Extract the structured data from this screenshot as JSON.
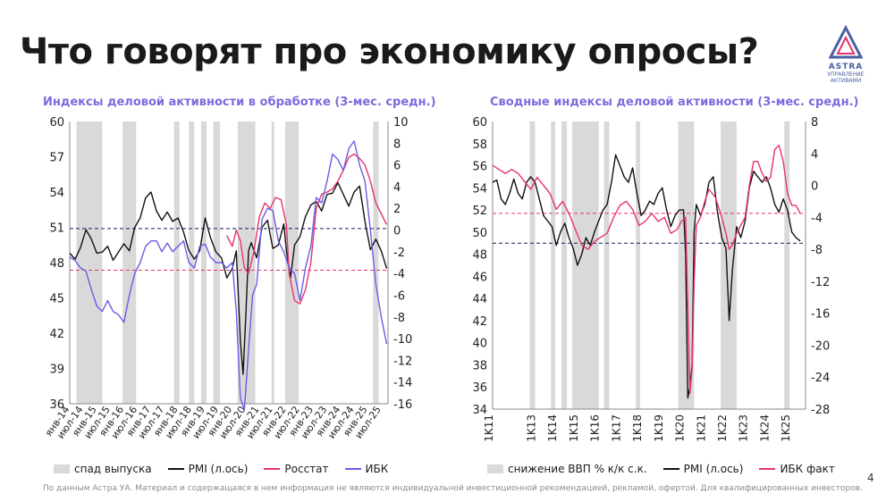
{
  "page": {
    "title": "Что говорят про экономику опросы?",
    "footnote": "По данным Астра УА. Материал и содержащаяся в нем информация не являются индивидуальной инвестиционной рекомендацией, рекламой, офертой. Для квалифицированных инвесторов.",
    "page_number": "4",
    "logo": {
      "brand": "ASTRA",
      "subtitle_1": "УПРАВЛЕНИЕ",
      "subtitle_2": "АКТИВАМИ"
    }
  },
  "colors": {
    "title": "#1a1a1a",
    "chart_title": "#7b6bde",
    "recession": "#d9d9d9",
    "pmi": "#111111",
    "rosstat": "#e8336b",
    "ibk": "#6b5ce7"
  },
  "chart_data": [
    {
      "type": "line",
      "title": "Индексы деловой активности в обработке (3-мес. средн.)",
      "y_left": {
        "lim": [
          36,
          60
        ],
        "ticks": [
          "36",
          "39",
          "42",
          "45",
          "48",
          "51",
          "54",
          "57",
          "60"
        ]
      },
      "y_right": {
        "lim": [
          -16,
          10
        ],
        "ticks": [
          "-16",
          "-14",
          "-12",
          "-10",
          "-8",
          "-6",
          "-4",
          "-2",
          "0",
          "2",
          "4",
          "6",
          "8",
          "10"
        ]
      },
      "x_range": [
        2014.0,
        2025.75
      ],
      "x_ticks": [
        {
          "x": 2014.0,
          "label": "янв-14"
        },
        {
          "x": 2014.5,
          "label": "июл-14"
        },
        {
          "x": 2015.0,
          "label": "янв-15"
        },
        {
          "x": 2015.5,
          "label": "июл-15"
        },
        {
          "x": 2016.0,
          "label": "янв-16"
        },
        {
          "x": 2016.5,
          "label": "июл-16"
        },
        {
          "x": 2017.0,
          "label": "янв-17"
        },
        {
          "x": 2017.5,
          "label": "июл-17"
        },
        {
          "x": 2018.0,
          "label": "янв-18"
        },
        {
          "x": 2018.5,
          "label": "июл-18"
        },
        {
          "x": 2019.0,
          "label": "янв-19"
        },
        {
          "x": 2019.5,
          "label": "июл-19"
        },
        {
          "x": 2020.0,
          "label": "янв-20"
        },
        {
          "x": 2020.5,
          "label": "июл-20"
        },
        {
          "x": 2021.0,
          "label": "янв-21"
        },
        {
          "x": 2021.5,
          "label": "июл-21"
        },
        {
          "x": 2022.0,
          "label": "янв-22"
        },
        {
          "x": 2022.5,
          "label": "июл-22"
        },
        {
          "x": 2023.0,
          "label": "янв-23"
        },
        {
          "x": 2023.5,
          "label": "июл-23"
        },
        {
          "x": 2024.0,
          "label": "янв-24"
        },
        {
          "x": 2024.5,
          "label": "июл-24"
        },
        {
          "x": 2025.0,
          "label": "янв-25"
        },
        {
          "x": 2025.5,
          "label": "июл-25"
        }
      ],
      "recessions": [
        [
          2014.25,
          2015.2
        ],
        [
          2015.95,
          2016.45
        ],
        [
          2017.85,
          2018.05
        ],
        [
          2018.4,
          2018.6
        ],
        [
          2018.85,
          2019.05
        ],
        [
          2019.3,
          2019.55
        ],
        [
          2020.2,
          2020.85
        ],
        [
          2021.45,
          2021.55
        ],
        [
          2021.95,
          2022.45
        ],
        [
          2025.2,
          2025.4
        ]
      ],
      "ref_left": 50.9,
      "ref_right": -3.7,
      "series": [
        {
          "name": "PMI (л.ось)",
          "axis": "left",
          "color": "#111111",
          "x": [
            2014.0,
            2014.2,
            2014.4,
            2014.6,
            2014.8,
            2015.0,
            2015.2,
            2015.4,
            2015.6,
            2015.8,
            2016.0,
            2016.2,
            2016.4,
            2016.6,
            2016.8,
            2017.0,
            2017.2,
            2017.4,
            2017.6,
            2017.8,
            2018.0,
            2018.2,
            2018.4,
            2018.6,
            2018.8,
            2019.0,
            2019.2,
            2019.4,
            2019.6,
            2019.8,
            2020.0,
            2020.15,
            2020.3,
            2020.4,
            2020.5,
            2020.6,
            2020.7,
            2020.9,
            2021.1,
            2021.3,
            2021.5,
            2021.7,
            2021.9,
            2022.0,
            2022.15,
            2022.3,
            2022.5,
            2022.7,
            2022.9,
            2023.1,
            2023.3,
            2023.5,
            2023.7,
            2023.9,
            2024.1,
            2024.3,
            2024.5,
            2024.7,
            2024.9,
            2025.1,
            2025.3,
            2025.5,
            2025.7
          ],
          "y": [
            48.8,
            48.3,
            49.3,
            50.8,
            50.0,
            48.8,
            48.9,
            49.4,
            48.2,
            48.9,
            49.6,
            49.0,
            51.0,
            51.8,
            53.5,
            54.0,
            52.4,
            51.6,
            52.3,
            51.5,
            51.8,
            50.6,
            49.0,
            48.3,
            49.0,
            51.8,
            50.1,
            48.9,
            48.4,
            46.7,
            47.5,
            49.0,
            41.3,
            38.5,
            43.4,
            49.0,
            49.7,
            48.4,
            51.0,
            51.6,
            49.2,
            49.5,
            51.3,
            49.0,
            46.7,
            49.5,
            50.2,
            51.9,
            52.9,
            53.2,
            52.4,
            53.8,
            53.9,
            54.8,
            53.8,
            52.8,
            54.0,
            54.5,
            51.5,
            49.1,
            50.0,
            49.0,
            47.5
          ]
        },
        {
          "name": "Росстат",
          "axis": "right",
          "color": "#e8336b",
          "x": [
            2019.8,
            2020.0,
            2020.15,
            2020.3,
            2020.45,
            2020.6,
            2020.8,
            2021.0,
            2021.2,
            2021.4,
            2021.6,
            2021.8,
            2022.0,
            2022.1,
            2022.3,
            2022.5,
            2022.7,
            2022.9,
            2023.1,
            2023.3,
            2023.5,
            2023.7,
            2023.9,
            2024.1,
            2024.3,
            2024.5,
            2024.7,
            2024.9,
            2025.1,
            2025.3,
            2025.5,
            2025.7
          ],
          "y": [
            -0.5,
            -1.5,
            0.0,
            -1.0,
            -3.5,
            -4.0,
            -2.0,
            1.2,
            2.5,
            2.0,
            3.0,
            2.8,
            0.5,
            -4.0,
            -6.5,
            -6.8,
            -5.5,
            -3.0,
            2.0,
            3.3,
            3.5,
            3.8,
            4.5,
            5.5,
            6.7,
            7.0,
            6.6,
            6.0,
            4.5,
            2.5,
            1.5,
            0.5
          ]
        },
        {
          "name": "ИБК",
          "axis": "right",
          "color": "#6b5ce7",
          "x": [
            2014.0,
            2014.2,
            2014.4,
            2014.6,
            2014.8,
            2015.0,
            2015.2,
            2015.4,
            2015.6,
            2015.8,
            2016.0,
            2016.2,
            2016.4,
            2016.6,
            2016.8,
            2017.0,
            2017.2,
            2017.4,
            2017.6,
            2017.8,
            2018.0,
            2018.2,
            2018.4,
            2018.6,
            2018.8,
            2019.0,
            2019.2,
            2019.4,
            2019.6,
            2019.8,
            2020.0,
            2020.15,
            2020.3,
            2020.45,
            2020.6,
            2020.75,
            2020.9,
            2021.1,
            2021.3,
            2021.5,
            2021.7,
            2021.9,
            2022.1,
            2022.3,
            2022.5,
            2022.7,
            2022.9,
            2023.1,
            2023.3,
            2023.5,
            2023.7,
            2023.9,
            2024.1,
            2024.3,
            2024.5,
            2024.7,
            2024.9,
            2025.1,
            2025.3,
            2025.5,
            2025.7
          ],
          "y": [
            -2.5,
            -2.8,
            -3.5,
            -3.8,
            -5.5,
            -7.0,
            -7.5,
            -6.5,
            -7.5,
            -7.8,
            -8.5,
            -6.0,
            -4.0,
            -3.0,
            -1.5,
            -1.0,
            -1.0,
            -2.0,
            -1.2,
            -2.0,
            -1.5,
            -1.0,
            -3.0,
            -3.5,
            -1.5,
            -1.3,
            -2.5,
            -3.0,
            -3.0,
            -3.5,
            -3.0,
            -7.5,
            -15.5,
            -16.5,
            -11.0,
            -6.0,
            -5.0,
            1.0,
            2.0,
            1.8,
            -1.0,
            -2.0,
            -3.5,
            -4.0,
            -6.5,
            -3.5,
            -1.5,
            3.0,
            2.5,
            4.5,
            7.0,
            6.5,
            5.5,
            7.5,
            8.2,
            6.0,
            4.5,
            0.0,
            -5.0,
            -8.0,
            -10.5
          ]
        }
      ]
    },
    {
      "type": "line",
      "title": "Сводные индексы деловой активности (3-мес. средн.)",
      "y_left": {
        "lim": [
          34,
          60
        ],
        "ticks": [
          "34",
          "36",
          "38",
          "40",
          "42",
          "44",
          "46",
          "48",
          "50",
          "52",
          "54",
          "56",
          "58",
          "60"
        ]
      },
      "y_right": {
        "lim": [
          -28,
          8
        ],
        "ticks": [
          "-28",
          "-24",
          "-20",
          "-16",
          "-12",
          "-8",
          "-4",
          "0",
          "4",
          "8"
        ]
      },
      "x_range": [
        2011.0,
        2025.75
      ],
      "x_ticks": [
        {
          "x": 2011.0,
          "label": "1K11"
        },
        {
          "x": 2013.0,
          "label": "1K13"
        },
        {
          "x": 2014.0,
          "label": "1K14"
        },
        {
          "x": 2015.0,
          "label": "1K15"
        },
        {
          "x": 2016.0,
          "label": "1K16"
        },
        {
          "x": 2017.0,
          "label": "1K17"
        },
        {
          "x": 2018.0,
          "label": "1K18"
        },
        {
          "x": 2019.0,
          "label": "1K19"
        },
        {
          "x": 2020.0,
          "label": "1K20"
        },
        {
          "x": 2021.0,
          "label": "1K21"
        },
        {
          "x": 2022.0,
          "label": "1K22"
        },
        {
          "x": 2023.0,
          "label": "1K23"
        },
        {
          "x": 2024.0,
          "label": "1K24"
        },
        {
          "x": 2025.0,
          "label": "1K25"
        }
      ],
      "recessions": [
        [
          2012.75,
          2013.0
        ],
        [
          2013.75,
          2013.95
        ],
        [
          2014.25,
          2014.5
        ],
        [
          2014.75,
          2016.0
        ],
        [
          2016.25,
          2016.5
        ],
        [
          2017.75,
          2017.95
        ],
        [
          2019.75,
          2020.5
        ],
        [
          2021.75,
          2022.5
        ],
        [
          2024.75,
          2025.0
        ]
      ],
      "ref_left": 49.0,
      "ref_right": -3.5,
      "series": [
        {
          "name": "PMI (л.ось)",
          "axis": "left",
          "color": "#111111",
          "x": [
            2011.0,
            2011.2,
            2011.4,
            2011.6,
            2011.8,
            2012.0,
            2012.2,
            2012.4,
            2012.6,
            2012.8,
            2013.0,
            2013.2,
            2013.4,
            2013.6,
            2013.8,
            2014.0,
            2014.2,
            2014.4,
            2014.6,
            2014.8,
            2015.0,
            2015.2,
            2015.4,
            2015.6,
            2015.8,
            2016.0,
            2016.2,
            2016.4,
            2016.6,
            2016.8,
            2017.0,
            2017.2,
            2017.4,
            2017.6,
            2017.8,
            2018.0,
            2018.2,
            2018.4,
            2018.6,
            2018.8,
            2019.0,
            2019.2,
            2019.4,
            2019.6,
            2019.8,
            2020.0,
            2020.1,
            2020.2,
            2020.3,
            2020.4,
            2020.5,
            2020.6,
            2020.8,
            2021.0,
            2021.2,
            2021.4,
            2021.6,
            2021.8,
            2022.0,
            2022.15,
            2022.3,
            2022.5,
            2022.7,
            2022.9,
            2023.1,
            2023.3,
            2023.5,
            2023.7,
            2023.9,
            2024.1,
            2024.3,
            2024.5,
            2024.7,
            2024.9,
            2025.1,
            2025.3,
            2025.5
          ],
          "y": [
            54.5,
            54.7,
            53.0,
            52.5,
            53.5,
            54.8,
            53.5,
            53.0,
            54.5,
            55.0,
            54.5,
            53.0,
            51.5,
            51.0,
            50.5,
            48.8,
            50.0,
            50.8,
            49.5,
            48.5,
            47.0,
            48.0,
            49.5,
            48.8,
            50.0,
            51.0,
            52.0,
            52.5,
            54.5,
            57.0,
            56.0,
            55.0,
            54.5,
            55.8,
            53.5,
            51.5,
            52.0,
            52.8,
            52.5,
            53.5,
            54.0,
            52.0,
            50.5,
            51.5,
            52.0,
            52.0,
            48.0,
            35.0,
            36.0,
            38.0,
            50.0,
            52.5,
            51.5,
            52.5,
            54.5,
            55.0,
            51.8,
            49.5,
            48.5,
            42.0,
            46.5,
            50.5,
            49.5,
            51.0,
            54.0,
            55.5,
            55.0,
            54.5,
            55.0,
            54.0,
            52.5,
            51.8,
            53.0,
            52.0,
            50.0,
            49.5,
            49.2
          ]
        },
        {
          "name": "ИБК факт",
          "axis": "right",
          "color": "#e8336b",
          "x": [
            2011.0,
            2011.3,
            2011.6,
            2011.9,
            2012.2,
            2012.5,
            2012.8,
            2013.1,
            2013.4,
            2013.7,
            2014.0,
            2014.3,
            2014.6,
            2014.9,
            2015.2,
            2015.5,
            2015.8,
            2016.1,
            2016.4,
            2016.7,
            2017.0,
            2017.3,
            2017.6,
            2017.9,
            2018.2,
            2018.5,
            2018.8,
            2019.1,
            2019.4,
            2019.7,
            2019.9,
            2020.1,
            2020.2,
            2020.3,
            2020.4,
            2020.5,
            2020.6,
            2020.8,
            2021.0,
            2021.2,
            2021.5,
            2021.8,
            2022.0,
            2022.15,
            2022.3,
            2022.5,
            2022.7,
            2022.9,
            2023.1,
            2023.3,
            2023.5,
            2023.7,
            2023.9,
            2024.1,
            2024.3,
            2024.5,
            2024.7,
            2024.9,
            2025.1,
            2025.3,
            2025.5
          ],
          "y": [
            2.5,
            2.0,
            1.5,
            2.0,
            1.5,
            0.5,
            -0.5,
            1.0,
            0.0,
            -1.0,
            -3.0,
            -2.0,
            -3.5,
            -5.5,
            -7.5,
            -8.0,
            -7.0,
            -6.5,
            -6.0,
            -4.0,
            -2.5,
            -2.0,
            -3.0,
            -5.0,
            -4.5,
            -3.5,
            -4.5,
            -4.0,
            -6.0,
            -5.5,
            -4.5,
            -4.0,
            -15.0,
            -26.0,
            -23.0,
            -12.0,
            -5.0,
            -4.0,
            -2.0,
            -0.5,
            -1.5,
            -4.0,
            -6.0,
            -8.0,
            -7.5,
            -6.0,
            -5.0,
            -4.0,
            0.0,
            3.0,
            3.0,
            1.5,
            0.5,
            1.0,
            4.5,
            5.0,
            3.0,
            -1.0,
            -2.5,
            -2.5,
            -3.5
          ]
        }
      ]
    }
  ],
  "left_chart": {
    "legend": {
      "recession": "спад выпуска",
      "pmi": "PMI (л.ось)",
      "rosstat": "Росстат",
      "ibk": "ИБК"
    }
  },
  "right_chart": {
    "legend": {
      "recession": "снижение ВВП % к/к с.к.",
      "pmi": "PMI (л.ось)",
      "ibk": "ИБК факт"
    }
  }
}
